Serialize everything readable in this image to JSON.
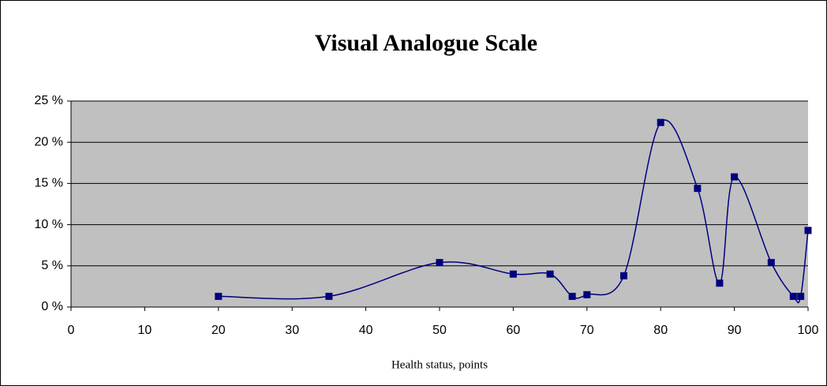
{
  "chart_data": {
    "type": "scatter",
    "title": "Visual Analogue Scale",
    "x_label": "Health status, points",
    "series": [
      {
        "color": "#000080",
        "x": [
          20,
          35,
          50,
          60,
          65,
          68,
          70,
          75,
          80,
          85,
          88,
          90,
          95,
          98,
          99,
          100
        ],
        "values": [
          1.3,
          1.3,
          5.4,
          4.0,
          4.0,
          1.3,
          1.5,
          3.8,
          22.4,
          14.4,
          2.9,
          15.8,
          5.4,
          1.3,
          1.3,
          9.3
        ]
      }
    ],
    "xlim": [
      0,
      100
    ],
    "xticks": [
      0,
      10,
      20,
      30,
      40,
      50,
      60,
      70,
      80,
      90,
      100
    ],
    "ylim": [
      0,
      25
    ],
    "yticks": [
      {
        "value": 0,
        "label": "0 %"
      },
      {
        "value": 5,
        "label": "5 %"
      },
      {
        "value": 10,
        "label": "10 %"
      },
      {
        "value": 15,
        "label": "15 %"
      },
      {
        "value": 20,
        "label": "20 %"
      },
      {
        "value": 25,
        "label": "25 %"
      }
    ],
    "grid": true,
    "smooth": true,
    "plot_background": "#c0c0c0"
  }
}
